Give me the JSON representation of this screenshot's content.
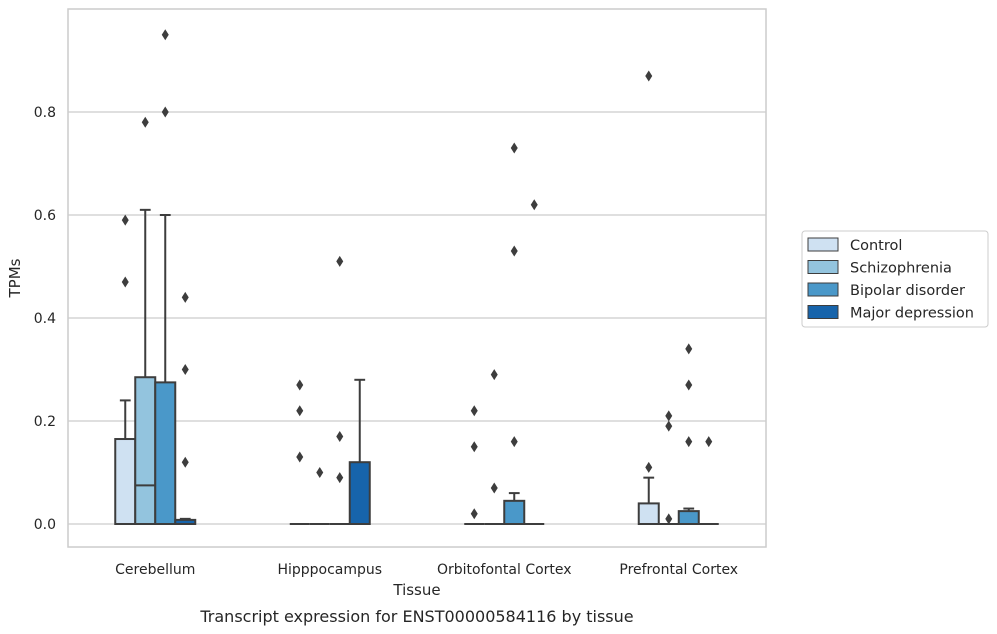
{
  "caption": "Transcript expression for ENST00000584116 by tissue",
  "chart_data": {
    "type": "boxplot",
    "xlabel": "Tissue",
    "ylabel": "TPMs",
    "ylim": [
      -0.045,
      0.995
    ],
    "yticks": [
      0.0,
      0.2,
      0.4,
      0.6,
      0.8
    ],
    "ytick_labels": [
      "0.0",
      "0.2",
      "0.4",
      "0.6",
      "0.8"
    ],
    "grid": "horizontal",
    "legend_position": "right",
    "categories": [
      "Cerebellum",
      "Hipppocampus",
      "Orbitofontal Cortex",
      "Prefrontal Cortex"
    ],
    "series": [
      {
        "name": "Control",
        "color": "#cfe1f2",
        "boxes": [
          {
            "q1": 0.0,
            "median": 0.0,
            "q3": 0.165,
            "whisker_low": 0.0,
            "whisker_high": 0.24,
            "outliers": [
              0.47,
              0.59
            ]
          },
          {
            "q1": 0.0,
            "median": 0.0,
            "q3": 0.0,
            "whisker_low": 0.0,
            "whisker_high": 0.0,
            "outliers": [
              0.13,
              0.22,
              0.27
            ]
          },
          {
            "q1": 0.0,
            "median": 0.0,
            "q3": 0.0,
            "whisker_low": 0.0,
            "whisker_high": 0.0,
            "outliers": [
              0.02,
              0.15,
              0.22
            ]
          },
          {
            "q1": 0.0,
            "median": 0.0,
            "q3": 0.04,
            "whisker_low": 0.0,
            "whisker_high": 0.09,
            "outliers": [
              0.11,
              0.87
            ]
          }
        ]
      },
      {
        "name": "Schizophrenia",
        "color": "#93c4de",
        "boxes": [
          {
            "q1": 0.0,
            "median": 0.075,
            "q3": 0.285,
            "whisker_low": 0.0,
            "whisker_high": 0.61,
            "outliers": [
              0.78
            ]
          },
          {
            "q1": 0.0,
            "median": 0.0,
            "q3": 0.0,
            "whisker_low": 0.0,
            "whisker_high": 0.0,
            "outliers": [
              0.1
            ]
          },
          {
            "q1": 0.0,
            "median": 0.0,
            "q3": 0.0,
            "whisker_low": 0.0,
            "whisker_high": 0.0,
            "outliers": [
              0.07,
              0.29
            ]
          },
          {
            "q1": 0.0,
            "median": 0.0,
            "q3": 0.0,
            "whisker_low": 0.0,
            "whisker_high": 0.0,
            "outliers": [
              0.01,
              0.19,
              0.21
            ]
          }
        ]
      },
      {
        "name": "Bipolar disorder",
        "color": "#4a98c9",
        "boxes": [
          {
            "q1": 0.0,
            "median": 0.0,
            "q3": 0.275,
            "whisker_low": 0.0,
            "whisker_high": 0.6,
            "outliers": [
              0.8,
              0.95
            ]
          },
          {
            "q1": 0.0,
            "median": 0.0,
            "q3": 0.0,
            "whisker_low": 0.0,
            "whisker_high": 0.0,
            "outliers": [
              0.09,
              0.17,
              0.51
            ]
          },
          {
            "q1": 0.0,
            "median": 0.0,
            "q3": 0.045,
            "whisker_low": 0.0,
            "whisker_high": 0.06,
            "outliers": [
              0.16,
              0.53,
              0.73
            ]
          },
          {
            "q1": 0.0,
            "median": 0.0,
            "q3": 0.025,
            "whisker_low": 0.0,
            "whisker_high": 0.03,
            "outliers": [
              0.16,
              0.27,
              0.34
            ]
          }
        ]
      },
      {
        "name": "Major depression",
        "color": "#1764ab",
        "boxes": [
          {
            "q1": 0.0,
            "median": 0.0,
            "q3": 0.008,
            "whisker_low": 0.0,
            "whisker_high": 0.01,
            "outliers": [
              0.12,
              0.3,
              0.44
            ]
          },
          {
            "q1": 0.0,
            "median": 0.0,
            "q3": 0.12,
            "whisker_low": 0.0,
            "whisker_high": 0.28,
            "outliers": []
          },
          {
            "q1": 0.0,
            "median": 0.0,
            "q3": 0.0,
            "whisker_low": 0.0,
            "whisker_high": 0.0,
            "outliers": [
              0.62
            ]
          },
          {
            "q1": 0.0,
            "median": 0.0,
            "q3": 0.0,
            "whisker_low": 0.0,
            "whisker_high": 0.0,
            "outliers": [
              0.16
            ]
          }
        ]
      }
    ]
  }
}
